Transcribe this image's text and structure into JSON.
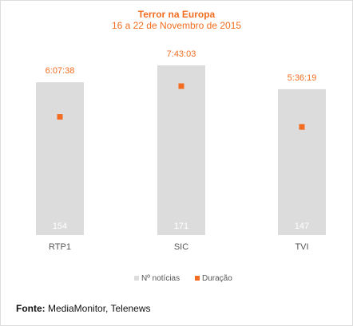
{
  "chart_data": {
    "type": "bar",
    "title": "Terror na Europa",
    "subtitle": "16 a 22 de Novembro de 2015",
    "categories": [
      "RTP1",
      "SIC",
      "TVI"
    ],
    "series": [
      {
        "name": "Nº notícias",
        "type": "bar",
        "values": [
          154,
          171,
          147
        ],
        "color": "#dcdcdc"
      },
      {
        "name": "Duração",
        "type": "scatter",
        "values": [
          "6:07:38",
          "7:43:03",
          "5:36:19"
        ],
        "color": "#f26d21"
      }
    ],
    "ylim": [
      0,
      175
    ],
    "legend_position": "bottom-center",
    "grid": false
  },
  "source": {
    "label": "Fonte:",
    "text": "MediaMonitor, Telenews"
  },
  "colors": {
    "accent": "#f26d21",
    "bar": "#dcdcdc",
    "bar_label": "#ffffff",
    "axis_text": "#555555"
  }
}
